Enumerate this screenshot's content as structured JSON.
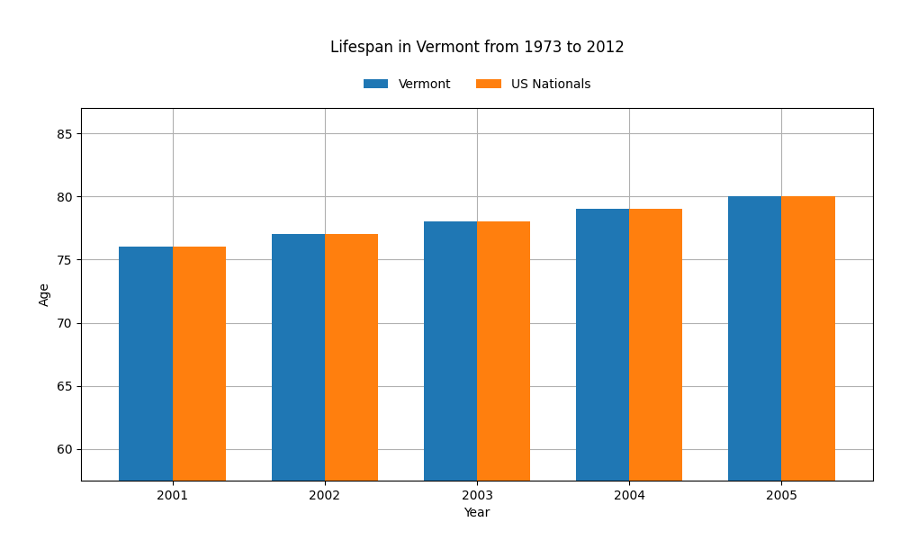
{
  "chart_data": {
    "type": "bar",
    "title": "Lifespan in Vermont from 1973 to 2012",
    "x_label": "Year",
    "y_label": "Age",
    "categories": [
      "2001",
      "2002",
      "2003",
      "2004",
      "2005"
    ],
    "series": [
      {
        "name": "Vermont",
        "values": [
          76,
          77,
          78,
          79,
          80
        ]
      },
      {
        "name": "US Nationals",
        "values": [
          76,
          77,
          78,
          79,
          80
        ]
      }
    ],
    "ylim": [
      57.5,
      87
    ],
    "yticks": [
      60,
      65,
      70,
      75,
      80,
      85
    ],
    "grid": true,
    "legend": "upper center"
  }
}
